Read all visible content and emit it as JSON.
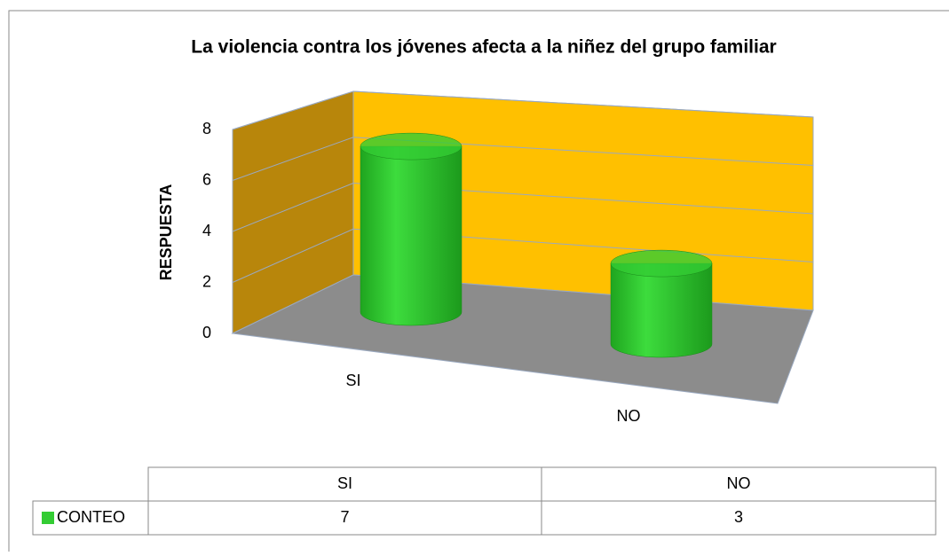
{
  "chart_data": {
    "type": "bar3d",
    "title": "La violencia contra los jóvenes afecta a la niñez del grupo familiar",
    "y_label": "RESPUESTA",
    "categories": [
      "SI",
      "NO"
    ],
    "series": [
      {
        "name": "CONTEO",
        "color": "#33cc33",
        "values": [
          7,
          3
        ]
      }
    ],
    "ylim": [
      0,
      8
    ],
    "yticks": [
      0,
      2,
      4,
      6,
      8
    ],
    "grid": true
  }
}
